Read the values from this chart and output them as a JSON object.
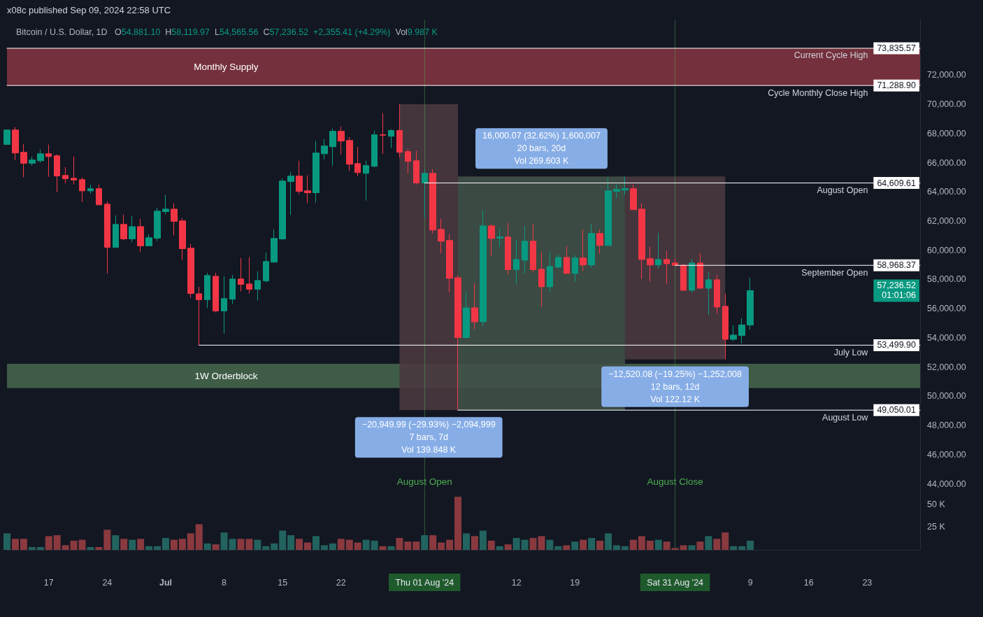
{
  "chart_data": [
    {
      "type": "candlestick",
      "title": "Bitcoin / U.S. Dollar, 1D",
      "subtitle": "O54,881.10  H58,119.97  L54,565.56  C57,236.52  +2,355.41 (+4.29%)  Vol9.987 K",
      "annotations": [
        "x08c published Sep 09, 2024 22:58 UTC",
        {
          "text": "−20,949.99 (−29.93%) −2,094,999\n7 bars, 7d\nVol 139.848 K",
          "x": "2024-08-01T12:00",
          "y": 49050.01
        },
        {
          "text": "16,000.07 (32.62%) 1,600,007\n20 bars, 20d\nVol 269.603 K",
          "x": "2024-08-15",
          "y": 65050.08
        },
        {
          "text": "−12,520.08 (−19.25%) −1,252,008\n12 bars, 12d\nVol 122.12 K",
          "x": "2024-08-31",
          "y": 52530
        },
        "57,236.52\n01:01:06"
      ],
      "x": [
        "2024-06-12",
        "2024-06-13",
        "2024-06-14",
        "2024-06-15",
        "2024-06-16",
        "2024-06-17",
        "2024-06-18",
        "2024-06-19",
        "2024-06-20",
        "2024-06-21",
        "2024-06-22",
        "2024-06-23",
        "2024-06-24",
        "2024-06-25",
        "2024-06-26",
        "2024-06-27",
        "2024-06-28",
        "2024-06-29",
        "2024-06-30",
        "2024-07-01",
        "2024-07-02",
        "2024-07-03",
        "2024-07-04",
        "2024-07-05",
        "2024-07-06",
        "2024-07-07",
        "2024-07-08",
        "2024-07-09",
        "2024-07-10",
        "2024-07-11",
        "2024-07-12",
        "2024-07-13",
        "2024-07-14",
        "2024-07-15",
        "2024-07-16",
        "2024-07-17",
        "2024-07-18",
        "2024-07-19",
        "2024-07-20",
        "2024-07-21",
        "2024-07-22",
        "2024-07-23",
        "2024-07-24",
        "2024-07-25",
        "2024-07-26",
        "2024-07-27",
        "2024-07-28",
        "2024-07-29",
        "2024-07-30",
        "2024-07-31",
        "2024-08-01",
        "2024-08-02",
        "2024-08-03",
        "2024-08-04",
        "2024-08-05",
        "2024-08-06",
        "2024-08-07",
        "2024-08-08",
        "2024-08-09",
        "2024-08-10",
        "2024-08-11",
        "2024-08-12",
        "2024-08-13",
        "2024-08-14",
        "2024-08-15",
        "2024-08-16",
        "2024-08-17",
        "2024-08-18",
        "2024-08-19",
        "2024-08-20",
        "2024-08-21",
        "2024-08-22",
        "2024-08-23",
        "2024-08-24",
        "2024-08-25",
        "2024-08-26",
        "2024-08-27",
        "2024-08-28",
        "2024-08-29",
        "2024-08-30",
        "2024-08-31",
        "2024-09-01",
        "2024-09-02",
        "2024-09-03",
        "2024-09-04",
        "2024-09-05",
        "2024-09-06",
        "2024-09-07",
        "2024-09-08",
        "2024-09-09"
      ],
      "ohlc": [
        [
          67250,
          68240,
          67250,
          68240
        ],
        [
          68240,
          68440,
          66180,
          66660
        ],
        [
          66710,
          67280,
          65000,
          65960
        ],
        [
          65960,
          66420,
          65800,
          66180
        ],
        [
          66130,
          66900,
          66000,
          66610
        ],
        [
          66610,
          67240,
          65030,
          66420
        ],
        [
          66470,
          66570,
          63980,
          65090
        ],
        [
          65130,
          65700,
          64610,
          64900
        ],
        [
          64930,
          66420,
          64520,
          64810
        ],
        [
          64840,
          64980,
          63300,
          64070
        ],
        [
          64070,
          64500,
          63880,
          64220
        ],
        [
          64220,
          64500,
          63110,
          63110
        ],
        [
          63160,
          63350,
          58410,
          60200
        ],
        [
          60200,
          62390,
          60200,
          61770
        ],
        [
          61770,
          62440,
          60680,
          60780
        ],
        [
          60780,
          62340,
          60540,
          61620
        ],
        [
          61620,
          62150,
          59870,
          60300
        ],
        [
          60300,
          61100,
          60300,
          60860
        ],
        [
          60830,
          62920,
          60630,
          62680
        ],
        [
          62650,
          63780,
          62460,
          62820
        ],
        [
          62820,
          63210,
          61020,
          61980
        ],
        [
          62010,
          62200,
          59340,
          60110
        ],
        [
          60140,
          60430,
          56750,
          57040
        ],
        [
          57020,
          57500,
          53500,
          56610
        ],
        [
          56610,
          58460,
          56030,
          58270
        ],
        [
          58220,
          58460,
          55740,
          55840
        ],
        [
          55840,
          58220,
          54300,
          56690
        ],
        [
          56650,
          58320,
          56320,
          58030
        ],
        [
          58030,
          59470,
          57180,
          57660
        ],
        [
          57690,
          59520,
          57040,
          57330
        ],
        [
          57330,
          58560,
          56560,
          57930
        ],
        [
          57900,
          59850,
          57800,
          59230
        ],
        [
          59180,
          61430,
          59180,
          60810
        ],
        [
          60780,
          64930,
          60680,
          64740
        ],
        [
          64710,
          65370,
          62410,
          65080
        ],
        [
          65080,
          66130,
          63850,
          64040
        ],
        [
          64070,
          65130,
          63220,
          63940
        ],
        [
          63940,
          67480,
          63270,
          66660
        ],
        [
          66610,
          67620,
          66230,
          67140
        ],
        [
          67090,
          68340,
          65800,
          68150
        ],
        [
          68150,
          68480,
          66570,
          67480
        ],
        [
          67520,
          67760,
          65410,
          65890
        ],
        [
          65940,
          67090,
          65080,
          65320
        ],
        [
          65270,
          66130,
          63400,
          65800
        ],
        [
          65750,
          68200,
          65700,
          67910
        ],
        [
          67910,
          69390,
          66610,
          67880
        ],
        [
          67810,
          68290,
          67000,
          68200
        ],
        [
          68200,
          70000,
          66370,
          66710
        ],
        [
          66760,
          66950,
          65270,
          66090
        ],
        [
          66130,
          66810,
          64500,
          64610
        ],
        [
          64609.61,
          65560,
          62200,
          65270
        ],
        [
          65270,
          65560,
          61150,
          61390
        ],
        [
          61430,
          62150,
          59800,
          60620
        ],
        [
          60670,
          61100,
          57120,
          58080
        ],
        [
          58120,
          58270,
          49050.01,
          54020
        ],
        [
          54020,
          57120,
          53950,
          56060
        ],
        [
          56060,
          57740,
          54590,
          55100
        ],
        [
          55100,
          62730,
          54780,
          61670
        ],
        [
          61670,
          61770,
          59580,
          60810
        ],
        [
          60830,
          61480,
          60230,
          60910
        ],
        [
          60910,
          61860,
          58320,
          58670
        ],
        [
          58670,
          60710,
          57640,
          59370
        ],
        [
          59320,
          61630,
          58410,
          60620
        ],
        [
          60620,
          61820,
          58460,
          58670
        ],
        [
          58700,
          59900,
          56110,
          57500
        ],
        [
          57500,
          59850,
          57130,
          58890
        ],
        [
          58840,
          59710,
          58800,
          59510
        ],
        [
          59510,
          60280,
          58410,
          58410
        ],
        [
          58410,
          59660,
          57840,
          59470
        ],
        [
          59470,
          61430,
          58560,
          58990
        ],
        [
          58990,
          61820,
          58800,
          61150
        ],
        [
          61150,
          61430,
          59750,
          60330
        ],
        [
          60330,
          64980,
          60330,
          64070
        ],
        [
          64040,
          64500,
          63560,
          64170
        ],
        [
          64120,
          65050.08,
          63780,
          64220
        ],
        [
          64220,
          64500,
          62780,
          62780
        ],
        [
          62820,
          63210,
          58030,
          59370
        ],
        [
          59420,
          60230,
          57840,
          58990
        ],
        [
          58990,
          61190,
          58750,
          59370
        ],
        [
          59370,
          59950,
          57690,
          59080
        ],
        [
          59130,
          59470,
          58940,
          58968.37
        ],
        [
          58968.37,
          59080,
          57210,
          57260
        ],
        [
          57260,
          59420,
          57120,
          59130
        ],
        [
          59130,
          59800,
          57400,
          57400
        ],
        [
          57400,
          58510,
          55580,
          57980
        ],
        [
          57980,
          58320,
          55650,
          56110
        ],
        [
          56160,
          57020,
          52530,
          53900
        ],
        [
          53900,
          54860,
          53780,
          54190
        ],
        [
          54160,
          55340,
          53620,
          54881.11
        ],
        [
          54881.1,
          58119.97,
          54565.56,
          57236.52
        ]
      ],
      "colors": [
        "#089981",
        "#f23645",
        "#f23645",
        "#089981",
        "#089981",
        "#f23645",
        "#f23645",
        "#f23645",
        "#f23645",
        "#f23645",
        "#089981",
        "#f23645",
        "#f23645",
        "#089981",
        "#f23645",
        "#089981",
        "#f23645",
        "#089981",
        "#089981",
        "#089981",
        "#f23645",
        "#f23645",
        "#f23645",
        "#f23645",
        "#089981",
        "#f23645",
        "#089981",
        "#089981",
        "#f23645",
        "#f23645",
        "#089981",
        "#089981",
        "#089981",
        "#089981",
        "#089981",
        "#f23645",
        "#f23645",
        "#089981",
        "#089981",
        "#089981",
        "#f23645",
        "#f23645",
        "#f23645",
        "#089981",
        "#089981",
        "#f23645",
        "#089981",
        "#f23645",
        "#f23645",
        "#f23645",
        "#089981",
        "#f23645",
        "#f23645",
        "#f23645",
        "#f23645",
        "#089981",
        "#f23645",
        "#089981",
        "#f23645",
        "#089981",
        "#f23645",
        "#089981",
        "#089981",
        "#f23645",
        "#f23645",
        "#089981",
        "#089981",
        "#f23645",
        "#089981",
        "#f23645",
        "#089981",
        "#f23645",
        "#089981",
        "#089981",
        "#089981",
        "#f23645",
        "#f23645",
        "#f23645",
        "#089981",
        "#f23645",
        "#f23645",
        "#f23645",
        "#089981",
        "#f23645",
        "#089981",
        "#f23645",
        "#f23645",
        "#089981",
        "#089981",
        "#089981"
      ],
      "series": [
        {
          "type": "line",
          "color": "#4a3840",
          "x": [
            "2024-07-29",
            "2024-08-05"
          ],
          "values": [
            null,
            null
          ],
          "lower": [
            49050.01,
            49050.01
          ],
          "upper": [
            70000,
            70000
          ]
        },
        {
          "type": "line",
          "color": "#405047",
          "x": [
            "2024-08-05",
            "2024-08-25"
          ],
          "values": [
            null,
            null
          ],
          "lower": [
            49050.01,
            49050.01
          ],
          "upper": [
            65050.08,
            65050.08
          ]
        },
        {
          "type": "line",
          "color": "#4a3840",
          "x": [
            "2024-08-25",
            "2024-09-06"
          ],
          "values": [
            null,
            null
          ],
          "lower": [
            52530,
            52530
          ],
          "upper": [
            65050.08,
            65050.08
          ]
        },
        {
          "type": "line",
          "name": "Current Cycle High",
          "color": "#ffffff",
          "x": [
            "2024-06-12",
            "2024-09-29T08:00"
          ],
          "values": [
            73835.57,
            73835.57
          ],
          "value_labels": [
            null,
            "73,835.57"
          ]
        },
        {
          "type": "line",
          "name": "Cycle Monthly Close High",
          "color": "#ffffff",
          "x": [
            "2024-06-12",
            "2024-09-29T08:00"
          ],
          "values": [
            71288.9,
            71288.9
          ],
          "value_labels": [
            null,
            "71,288.90"
          ]
        },
        {
          "type": "line",
          "name": "August Open",
          "color": "#ffffff",
          "x": [
            "2024-08-01",
            "2024-09-29T08:00"
          ],
          "values": [
            64609.61,
            64609.61
          ],
          "value_labels": [
            null,
            "64,609.61"
          ]
        },
        {
          "type": "line",
          "name": "September Open",
          "color": "#ffffff",
          "x": [
            "2024-08-31",
            "2024-09-29T08:00"
          ],
          "values": [
            58968.37,
            58968.37
          ],
          "value_labels": [
            null,
            "58,968.37"
          ]
        },
        {
          "type": "line",
          "name": "July Low",
          "color": "#ffffff",
          "x": [
            "2024-07-05",
            "2024-09-29T08:00"
          ],
          "values": [
            53499.9,
            53499.9
          ],
          "value_labels": [
            null,
            "53,499.90"
          ]
        },
        {
          "type": "line",
          "name": "August Low",
          "color": "#ffffff",
          "x": [
            "2024-08-05",
            "2024-09-29T08:00"
          ],
          "values": [
            49050.01,
            49050.01
          ],
          "value_labels": [
            null,
            "49,050.01"
          ]
        }
      ],
      "bands": [
        {
          "axis": "y",
          "from": 71288.9,
          "to": 73835.57,
          "label": "Monthly Supply",
          "color": "#74303c"
        },
        {
          "axis": "y",
          "from": 50560,
          "to": 52220,
          "label": "1W Orderblock",
          "color": "#3f5c46"
        }
      ],
      "ref_lines": [
        {
          "axis": "x",
          "value": "2024-08-01",
          "label": "August Open",
          "color": "#4caf50"
        },
        {
          "axis": "x",
          "value": "2024-08-31",
          "label": "August Close",
          "color": "#4caf50"
        }
      ],
      "xlim": [
        "2024-06-12",
        "2024-09-29T08:00"
      ],
      "ylim": [
        43600,
        75800
      ],
      "yticks": [
        {
          "value": 44000,
          "label": "44,000.00"
        },
        {
          "value": 46000,
          "label": "46,000.00"
        },
        {
          "value": 48000,
          "label": "48,000.00"
        },
        {
          "value": 50000,
          "label": "50,000.00"
        },
        {
          "value": 52000,
          "label": "52,000.00"
        },
        {
          "value": 54000,
          "label": "54,000.00"
        },
        {
          "value": 56000,
          "label": "56,000.00"
        },
        {
          "value": 58000,
          "label": "58,000.00"
        },
        {
          "value": 60000,
          "label": "60,000.00"
        },
        {
          "value": 62000,
          "label": "62,000.00"
        },
        {
          "value": 64000,
          "label": "64,000.00"
        },
        {
          "value": 66000,
          "label": "66,000.00"
        },
        {
          "value": 68000,
          "label": "68,000.00"
        },
        {
          "value": 70000,
          "label": "70,000.00"
        },
        {
          "value": 72000,
          "label": "72,000.00"
        }
      ],
      "tick_labels": "y"
    },
    {
      "type": "bar",
      "x": [
        "2024-06-12",
        "2024-06-13",
        "2024-06-14",
        "2024-06-15",
        "2024-06-16",
        "2024-06-17",
        "2024-06-18",
        "2024-06-19",
        "2024-06-20",
        "2024-06-21",
        "2024-06-22",
        "2024-06-23",
        "2024-06-24",
        "2024-06-25",
        "2024-06-26",
        "2024-06-27",
        "2024-06-28",
        "2024-06-29",
        "2024-06-30",
        "2024-07-01",
        "2024-07-02",
        "2024-07-03",
        "2024-07-04",
        "2024-07-05",
        "2024-07-06",
        "2024-07-07",
        "2024-07-08",
        "2024-07-09",
        "2024-07-10",
        "2024-07-11",
        "2024-07-12",
        "2024-07-13",
        "2024-07-14",
        "2024-07-15",
        "2024-07-16",
        "2024-07-17",
        "2024-07-18",
        "2024-07-19",
        "2024-07-20",
        "2024-07-21",
        "2024-07-22",
        "2024-07-23",
        "2024-07-24",
        "2024-07-25",
        "2024-07-26",
        "2024-07-27",
        "2024-07-28",
        "2024-07-29",
        "2024-07-30",
        "2024-07-31",
        "2024-08-01",
        "2024-08-02",
        "2024-08-03",
        "2024-08-04",
        "2024-08-05",
        "2024-08-06",
        "2024-08-07",
        "2024-08-08",
        "2024-08-09",
        "2024-08-10",
        "2024-08-11",
        "2024-08-12",
        "2024-08-13",
        "2024-08-14",
        "2024-08-15",
        "2024-08-16",
        "2024-08-17",
        "2024-08-18",
        "2024-08-19",
        "2024-08-20",
        "2024-08-21",
        "2024-08-22",
        "2024-08-23",
        "2024-08-24",
        "2024-08-25",
        "2024-08-26",
        "2024-08-27",
        "2024-08-28",
        "2024-08-29",
        "2024-08-30",
        "2024-08-31",
        "2024-09-01",
        "2024-09-02",
        "2024-09-03",
        "2024-09-04",
        "2024-09-05",
        "2024-09-06",
        "2024-09-07",
        "2024-09-08",
        "2024-09-09"
      ],
      "values": [
        18,
        12,
        12,
        3,
        3,
        15,
        16,
        5,
        10,
        11,
        3,
        3,
        22,
        16,
        12,
        11,
        12,
        4,
        4,
        13,
        11,
        12,
        18,
        28,
        7,
        6,
        19,
        12,
        12,
        12,
        11,
        4,
        7,
        21,
        16,
        12,
        8,
        15,
        5,
        7,
        12,
        11,
        8,
        11,
        10,
        4,
        4,
        13,
        9,
        9,
        16,
        16,
        8,
        11,
        58,
        18,
        15,
        21,
        10,
        4,
        6,
        13,
        11,
        13,
        15,
        11,
        4,
        5,
        9,
        11,
        13,
        10,
        18,
        5,
        4,
        11,
        15,
        10,
        11,
        9,
        2,
        5,
        5,
        9,
        15,
        12,
        19,
        4,
        4,
        10
      ],
      "colors": [
        "#22635f",
        "#8a3a3f",
        "#8a3a3f",
        "#22635f",
        "#22635f",
        "#8a3a3f",
        "#8a3a3f",
        "#8a3a3f",
        "#8a3a3f",
        "#8a3a3f",
        "#22635f",
        "#8a3a3f",
        "#8a3a3f",
        "#22635f",
        "#8a3a3f",
        "#22635f",
        "#8a3a3f",
        "#22635f",
        "#22635f",
        "#22635f",
        "#8a3a3f",
        "#8a3a3f",
        "#8a3a3f",
        "#8a3a3f",
        "#22635f",
        "#8a3a3f",
        "#22635f",
        "#22635f",
        "#8a3a3f",
        "#8a3a3f",
        "#22635f",
        "#22635f",
        "#22635f",
        "#22635f",
        "#22635f",
        "#8a3a3f",
        "#8a3a3f",
        "#22635f",
        "#22635f",
        "#22635f",
        "#8a3a3f",
        "#8a3a3f",
        "#8a3a3f",
        "#22635f",
        "#22635f",
        "#8a3a3f",
        "#22635f",
        "#8a3a3f",
        "#8a3a3f",
        "#8a3a3f",
        "#22635f",
        "#8a3a3f",
        "#8a3a3f",
        "#8a3a3f",
        "#8a3a3f",
        "#22635f",
        "#8a3a3f",
        "#22635f",
        "#8a3a3f",
        "#22635f",
        "#8a3a3f",
        "#22635f",
        "#22635f",
        "#8a3a3f",
        "#8a3a3f",
        "#22635f",
        "#22635f",
        "#8a3a3f",
        "#22635f",
        "#8a3a3f",
        "#22635f",
        "#8a3a3f",
        "#22635f",
        "#22635f",
        "#22635f",
        "#8a3a3f",
        "#8a3a3f",
        "#8a3a3f",
        "#22635f",
        "#8a3a3f",
        "#8a3a3f",
        "#8a3a3f",
        "#22635f",
        "#8a3a3f",
        "#22635f",
        "#8a3a3f",
        "#8a3a3f",
        "#22635f",
        "#22635f",
        "#22635f"
      ],
      "xlim": [
        "2024-06-12",
        "2024-09-29T08:00"
      ],
      "ylim": [
        0,
        65
      ],
      "xticks": [
        {
          "value": "2024-06-17",
          "label": "17"
        },
        {
          "value": "2024-06-24",
          "label": "24"
        },
        {
          "value": "2024-07-01",
          "label": "Jul"
        },
        {
          "value": "2024-07-08",
          "label": "8"
        },
        {
          "value": "2024-07-15",
          "label": "15"
        },
        {
          "value": "2024-07-22",
          "label": "22"
        },
        {
          "value": "2024-08-01",
          "label": "Thu 01 Aug '24"
        },
        {
          "value": "2024-08-12",
          "label": "12"
        },
        {
          "value": "2024-08-19",
          "label": "19"
        },
        {
          "value": "2024-08-31",
          "label": "Sat 31 Aug '24"
        },
        {
          "value": "2024-09-09",
          "label": "9"
        },
        {
          "value": "2024-09-16",
          "label": "16"
        },
        {
          "value": "2024-09-23",
          "label": "23"
        }
      ],
      "yticks": [
        {
          "value": 25,
          "label": "25 K"
        },
        {
          "value": 50,
          "label": "50 K"
        }
      ],
      "ref_lines": [
        {
          "axis": "x",
          "value": "2024-08-01",
          "color": "#4caf50"
        },
        {
          "axis": "x",
          "value": "2024-08-31",
          "color": "#4caf50"
        }
      ]
    }
  ]
}
